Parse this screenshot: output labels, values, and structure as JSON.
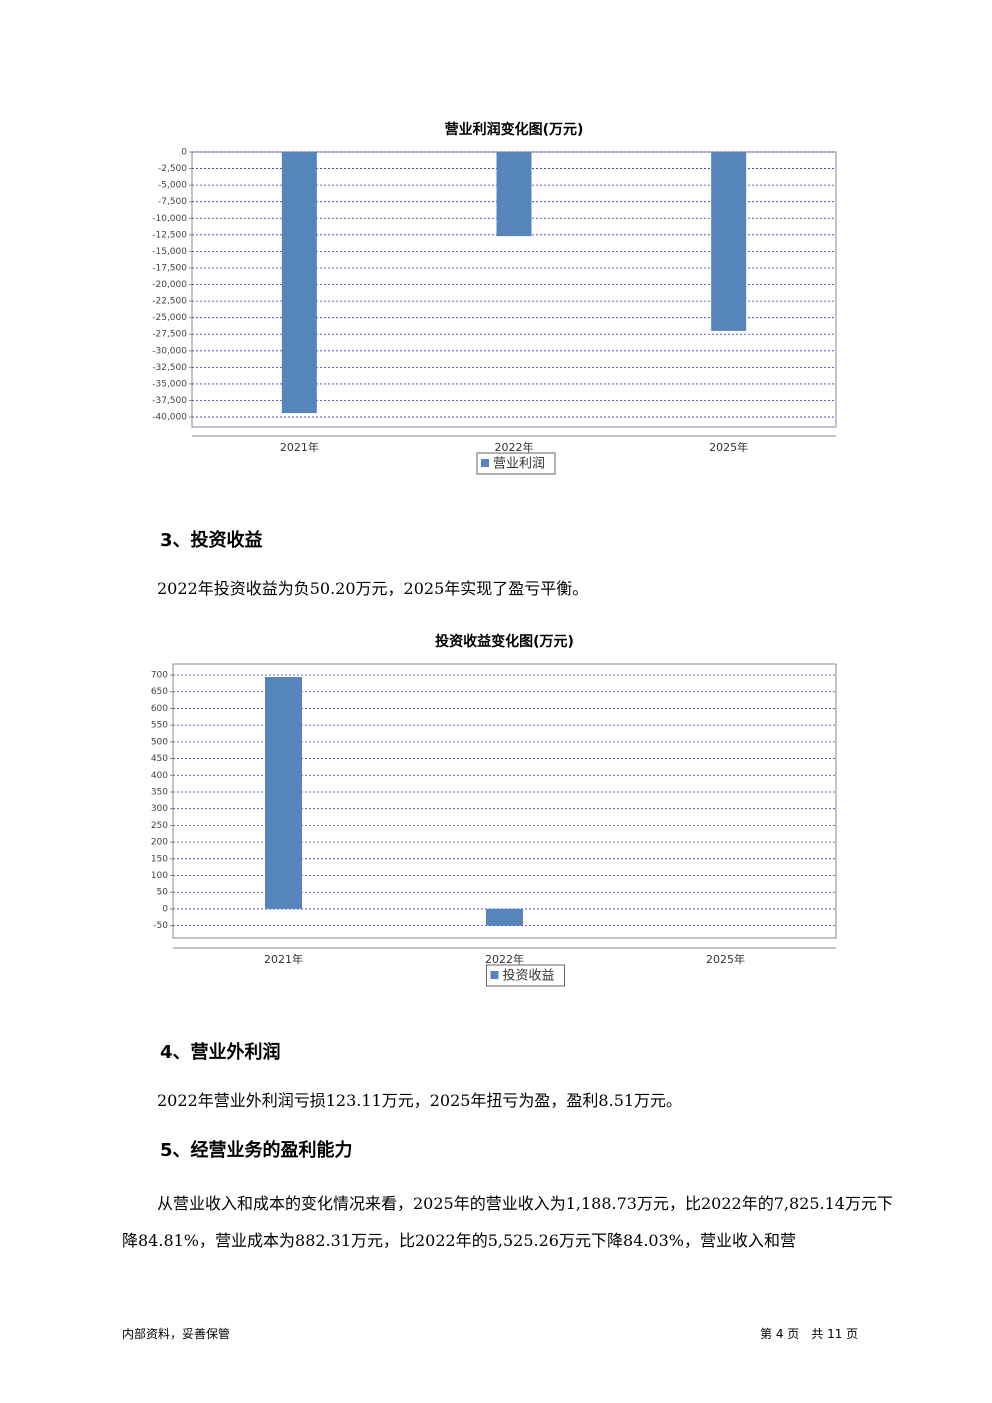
{
  "chart_data": [
    {
      "type": "bar",
      "title": "营业利润变化图(万元)",
      "categories": [
        "2021年",
        "2022年",
        "2025年"
      ],
      "series": [
        {
          "name": "营业利润",
          "color": "#5585bb",
          "values": [
            -39400,
            -12700,
            -27000
          ]
        }
      ],
      "ylim": [
        -41500,
        0
      ],
      "yticks": [
        0,
        {
          "value": -2500,
          "label": "-2,500"
        },
        {
          "value": -5000,
          "label": "-5,000"
        },
        {
          "value": -7500,
          "label": "-7,500"
        },
        {
          "value": -10000,
          "label": "-10,000"
        },
        {
          "value": -12500,
          "label": "-12,500"
        },
        {
          "value": -15000,
          "label": "-15,000"
        },
        {
          "value": -17500,
          "label": "-17,500"
        },
        {
          "value": -20000,
          "label": "-20,000"
        },
        {
          "value": -22500,
          "label": "-22,500"
        },
        {
          "value": -25000,
          "label": "-25,000"
        },
        {
          "value": -27500,
          "label": "-27,500"
        },
        {
          "value": -30000,
          "label": "-30,000"
        },
        {
          "value": -32500,
          "label": "-32,500"
        },
        {
          "value": -35000,
          "label": "-35,000"
        },
        {
          "value": -37500,
          "label": "-37,500"
        },
        {
          "value": -40000,
          "label": "-40,000"
        }
      ],
      "grid": true
    },
    {
      "type": "bar",
      "title": "投资收益变化图(万元)",
      "categories": [
        "2021年",
        "2022年",
        "2025年"
      ],
      "series": [
        {
          "name": "投资收益",
          "color": "#5585bb",
          "values": [
            694,
            -50.2,
            0
          ]
        }
      ],
      "ylim": [
        -87,
        733
      ],
      "yticks": [
        700,
        650,
        600,
        550,
        500,
        450,
        400,
        350,
        300,
        250,
        200,
        150,
        100,
        50,
        0,
        -50
      ],
      "grid": true
    }
  ],
  "sections": [
    {
      "heading": "3、投资收益",
      "text": "2022年投资收益为负50.20万元，2025年实现了盈亏平衡。"
    },
    {
      "heading": "4、营业外利润",
      "text": "2022年营业外利润亏损123.11万元，2025年扭亏为盈，盈利8.51万元。"
    },
    {
      "heading": "5、经营业务的盈利能力",
      "text": "从营业收入和成本的变化情况来看，2025年的营业收入为1,188.73万元，比2022年的7,825.14万元下降84.81%，营业成本为882.31万元，比2022年的5,525.26万元下降84.03%，营业收入和营"
    }
  ],
  "footer": {
    "left": "内部资料，妥善保管",
    "right": "第 4 页　共 11 页"
  }
}
